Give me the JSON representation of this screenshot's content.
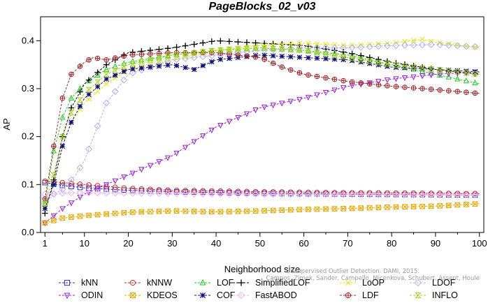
{
  "chart_data": {
    "type": "line",
    "title": "PageBlocks_02_v03",
    "xlabel": "Neighborhood size",
    "ylabel": "AP",
    "xlim": [
      0,
      101
    ],
    "ylim": [
      0,
      0.45
    ],
    "xticks": [
      1,
      10,
      20,
      30,
      40,
      50,
      60,
      70,
      80,
      90,
      100
    ],
    "yticks": [
      0.0,
      0.1,
      0.2,
      0.3,
      0.4
    ],
    "grid": false,
    "legend_position": "bottom",
    "watermark": [
      "Campos, Zimek, Sander, Campello, Micenkova, Schubert, Assent, Houle",
      "Unsupervised Outlier Detection. DAMI, 2015."
    ],
    "series": [
      {
        "name": "kNN",
        "color": "#2a2ad0",
        "marker": "square",
        "dashed": true,
        "points": [
          [
            1,
            0.104
          ],
          [
            5,
            0.098
          ],
          [
            10,
            0.093
          ],
          [
            20,
            0.088
          ],
          [
            30,
            0.085
          ],
          [
            50,
            0.082
          ],
          [
            70,
            0.08
          ],
          [
            100,
            0.078
          ]
        ]
      },
      {
        "name": "kNNW",
        "color": "#d02a2a",
        "marker": "circle",
        "dashed": true,
        "points": [
          [
            1,
            0.107
          ],
          [
            5,
            0.104
          ],
          [
            10,
            0.1
          ],
          [
            20,
            0.092
          ],
          [
            30,
            0.088
          ],
          [
            50,
            0.085
          ],
          [
            70,
            0.083
          ],
          [
            100,
            0.081
          ]
        ]
      },
      {
        "name": "LOF",
        "color": "#1ecc1e",
        "marker": "triangle",
        "dashed": true,
        "points": [
          [
            1,
            0.06
          ],
          [
            3,
            0.17
          ],
          [
            5,
            0.24
          ],
          [
            7,
            0.28
          ],
          [
            10,
            0.31
          ],
          [
            15,
            0.34
          ],
          [
            20,
            0.355
          ],
          [
            30,
            0.37
          ],
          [
            40,
            0.38
          ],
          [
            50,
            0.385
          ],
          [
            60,
            0.38
          ],
          [
            70,
            0.37
          ],
          [
            80,
            0.35
          ],
          [
            90,
            0.33
          ],
          [
            100,
            0.31
          ]
        ]
      },
      {
        "name": "SimplifiedLOF",
        "color": "#000000",
        "marker": "plus",
        "dashed": true,
        "points": [
          [
            1,
            0.04
          ],
          [
            3,
            0.11
          ],
          [
            5,
            0.2
          ],
          [
            7,
            0.26
          ],
          [
            10,
            0.31
          ],
          [
            15,
            0.35
          ],
          [
            20,
            0.375
          ],
          [
            30,
            0.385
          ],
          [
            40,
            0.4
          ],
          [
            50,
            0.395
          ],
          [
            60,
            0.39
          ],
          [
            70,
            0.375
          ],
          [
            80,
            0.355
          ],
          [
            90,
            0.34
          ],
          [
            100,
            0.33
          ]
        ]
      },
      {
        "name": "LoOP",
        "color": "#e6e600",
        "marker": "x",
        "dashed": true,
        "points": [
          [
            1,
            0.05
          ],
          [
            3,
            0.1
          ],
          [
            5,
            0.18
          ],
          [
            7,
            0.23
          ],
          [
            10,
            0.27
          ],
          [
            15,
            0.31
          ],
          [
            20,
            0.34
          ],
          [
            30,
            0.36
          ],
          [
            40,
            0.38
          ],
          [
            50,
            0.39
          ],
          [
            60,
            0.395
          ],
          [
            70,
            0.39
          ],
          [
            80,
            0.395
          ],
          [
            87,
            0.403
          ],
          [
            90,
            0.397
          ],
          [
            100,
            0.385
          ]
        ]
      },
      {
        "name": "LDOF",
        "color": "#b0b0f0",
        "marker": "diamond",
        "dashed": true,
        "points": [
          [
            1,
            0.06
          ],
          [
            3,
            0.08
          ],
          [
            5,
            0.09
          ],
          [
            8,
            0.12
          ],
          [
            10,
            0.15
          ],
          [
            15,
            0.27
          ],
          [
            20,
            0.33
          ],
          [
            30,
            0.36
          ],
          [
            40,
            0.37
          ],
          [
            50,
            0.38
          ],
          [
            60,
            0.385
          ],
          [
            70,
            0.385
          ],
          [
            80,
            0.39
          ],
          [
            90,
            0.392
          ],
          [
            100,
            0.387
          ]
        ]
      },
      {
        "name": "ODIN",
        "color": "#9a20d6",
        "marker": "triangle-down",
        "dashed": true,
        "points": [
          [
            1,
            0.02
          ],
          [
            5,
            0.05
          ],
          [
            10,
            0.08
          ],
          [
            20,
            0.12
          ],
          [
            30,
            0.16
          ],
          [
            40,
            0.22
          ],
          [
            50,
            0.26
          ],
          [
            60,
            0.28
          ],
          [
            70,
            0.305
          ],
          [
            80,
            0.32
          ],
          [
            90,
            0.33
          ],
          [
            100,
            0.335
          ]
        ]
      },
      {
        "name": "KDEOS",
        "color": "#e6a800",
        "marker": "square-x",
        "dashed": true,
        "points": [
          [
            1,
            0.02
          ],
          [
            5,
            0.03
          ],
          [
            10,
            0.035
          ],
          [
            20,
            0.042
          ],
          [
            30,
            0.045
          ],
          [
            40,
            0.043
          ],
          [
            50,
            0.045
          ],
          [
            60,
            0.048
          ],
          [
            70,
            0.05
          ],
          [
            80,
            0.053
          ],
          [
            90,
            0.055
          ],
          [
            100,
            0.06
          ]
        ]
      },
      {
        "name": "COF",
        "color": "#10107a",
        "marker": "star",
        "dashed": true,
        "points": [
          [
            1,
            0.05
          ],
          [
            3,
            0.1
          ],
          [
            5,
            0.18
          ],
          [
            7,
            0.23
          ],
          [
            10,
            0.28
          ],
          [
            15,
            0.32
          ],
          [
            20,
            0.34
          ],
          [
            30,
            0.35
          ],
          [
            35,
            0.34
          ],
          [
            40,
            0.36
          ],
          [
            50,
            0.37
          ],
          [
            60,
            0.365
          ],
          [
            70,
            0.36
          ],
          [
            80,
            0.345
          ],
          [
            90,
            0.34
          ],
          [
            100,
            0.335
          ]
        ]
      },
      {
        "name": "FastABOD",
        "color": "#f0b0f0",
        "marker": "diamond",
        "dashed": true,
        "points": [
          [
            1,
            0.08
          ],
          [
            5,
            0.082
          ],
          [
            10,
            0.083
          ],
          [
            20,
            0.082
          ],
          [
            40,
            0.08
          ],
          [
            70,
            0.079
          ],
          [
            100,
            0.078
          ]
        ]
      },
      {
        "name": "LDF",
        "color": "#a02828",
        "marker": "circle-plus",
        "dashed": true,
        "points": [
          [
            1,
            0.07
          ],
          [
            3,
            0.18
          ],
          [
            5,
            0.28
          ],
          [
            7,
            0.33
          ],
          [
            10,
            0.355
          ],
          [
            12,
            0.365
          ],
          [
            15,
            0.36
          ],
          [
            20,
            0.37
          ],
          [
            30,
            0.375
          ],
          [
            40,
            0.375
          ],
          [
            50,
            0.365
          ],
          [
            55,
            0.345
          ],
          [
            60,
            0.33
          ],
          [
            70,
            0.315
          ],
          [
            80,
            0.305
          ],
          [
            90,
            0.298
          ],
          [
            100,
            0.29
          ]
        ]
      },
      {
        "name": "INFLO",
        "color": "#a8d020",
        "marker": "hourglass",
        "dashed": true,
        "points": [
          [
            1,
            0.06
          ],
          [
            3,
            0.12
          ],
          [
            5,
            0.2
          ],
          [
            7,
            0.25
          ],
          [
            10,
            0.29
          ],
          [
            15,
            0.33
          ],
          [
            20,
            0.35
          ],
          [
            30,
            0.37
          ],
          [
            40,
            0.38
          ],
          [
            50,
            0.385
          ],
          [
            60,
            0.38
          ],
          [
            70,
            0.365
          ],
          [
            80,
            0.35
          ],
          [
            90,
            0.34
          ],
          [
            100,
            0.33
          ]
        ]
      }
    ]
  }
}
